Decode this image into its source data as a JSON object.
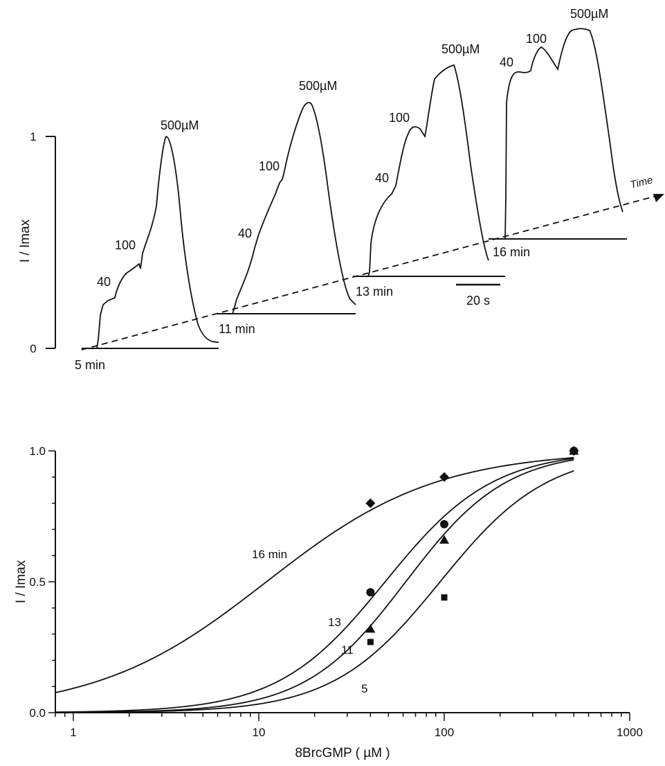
{
  "chart_data": [
    {
      "type": "line",
      "panel": "top",
      "ylabel": "I / Imax",
      "yticks": [
        "0",
        "1"
      ],
      "ylim": [
        0,
        1
      ],
      "time_arrow_label": "Time",
      "scale_bar_label": "20 s",
      "scale_bar_seconds": 20,
      "traces": [
        {
          "name": "5 min",
          "peak_labels": [
            "40",
            "100",
            "500µM"
          ],
          "plateaus": [
            0.26,
            0.42,
            1.0
          ]
        },
        {
          "name": "11 min",
          "peak_labels": [
            "40",
            "100",
            "500µM"
          ],
          "plateaus": [
            0.52,
            0.8,
            1.0
          ]
        },
        {
          "name": "13 min",
          "peak_labels": [
            "40",
            "100",
            "500µM"
          ],
          "plateaus": [
            0.72,
            0.9,
            1.0
          ]
        },
        {
          "name": "16 min",
          "peak_labels": [
            "40",
            "100",
            "500µM"
          ],
          "plateaus": [
            0.89,
            0.92,
            1.0
          ]
        }
      ]
    },
    {
      "type": "scatter",
      "panel": "bottom",
      "xlabel": "8BrcGMP ( µM )",
      "ylabel": "I / Imax",
      "x_scale": "log",
      "xlim": [
        0.8,
        1000
      ],
      "ylim": [
        0,
        1
      ],
      "xticks": [
        "1",
        "10",
        "100",
        "1000"
      ],
      "yticks": [
        "0.0",
        "0.5",
        "1.0"
      ],
      "series": [
        {
          "name": "16 min",
          "marker": "diamond",
          "x": [
            40,
            100,
            500
          ],
          "y": [
            0.8,
            0.9,
            1.0
          ],
          "k": 11,
          "n": 0.95
        },
        {
          "name": "13",
          "marker": "circle",
          "x": [
            40,
            100,
            500
          ],
          "y": [
            0.46,
            0.72,
            1.0
          ],
          "k": 48,
          "n": 1.5
        },
        {
          "name": "11",
          "marker": "triangle",
          "x": [
            40,
            100,
            500
          ],
          "y": [
            0.32,
            0.66,
            1.0
          ],
          "k": 62,
          "n": 1.6
        },
        {
          "name": "5",
          "marker": "square",
          "x": [
            40,
            100,
            500
          ],
          "y": [
            0.27,
            0.44,
            1.0
          ],
          "k": 95,
          "n": 1.5
        }
      ]
    }
  ]
}
